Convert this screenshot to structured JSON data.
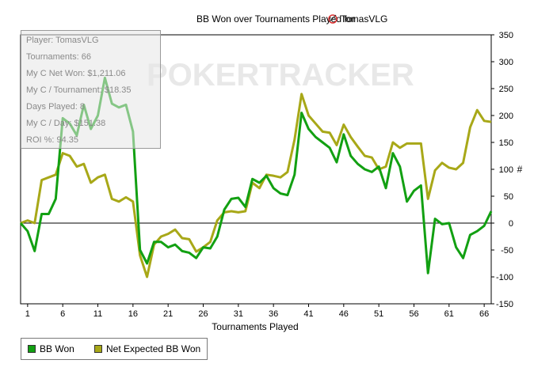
{
  "chart_data": {
    "type": "line",
    "title": "BB Won over Tournaments Played for",
    "player_name": "TomasVLG",
    "xlabel": "Tournaments Played",
    "ylabel": "#",
    "xlim": [
      0,
      67
    ],
    "ylim": [
      -150,
      350
    ],
    "x_ticks": [
      1,
      6,
      11,
      16,
      21,
      26,
      31,
      36,
      41,
      46,
      51,
      56,
      61,
      66
    ],
    "y_ticks": [
      -150,
      -100,
      -50,
      0,
      50,
      100,
      150,
      200,
      250,
      300,
      350
    ],
    "grid": false,
    "zero_line": true,
    "legend_position": "bottom-left",
    "watermark": "POKERTRACKER",
    "series": [
      {
        "name": "BB Won",
        "color": "#12a012",
        "values": [
          0,
          -15,
          -52,
          17,
          17,
          45,
          195,
          185,
          163,
          220,
          175,
          200,
          270,
          222,
          215,
          220,
          170,
          -50,
          -75,
          -35,
          -35,
          -45,
          -40,
          -52,
          -55,
          -65,
          -45,
          -47,
          -25,
          25,
          45,
          47,
          30,
          82,
          75,
          88,
          65,
          55,
          52,
          90,
          205,
          175,
          160,
          150,
          140,
          113,
          165,
          125,
          110,
          100,
          95,
          105,
          65,
          130,
          105,
          40,
          60,
          70,
          -93,
          8,
          -2,
          0,
          -45,
          -65,
          -22,
          -15,
          -5,
          22
        ]
      },
      {
        "name": "Net Expected BB Won",
        "color": "#a8a818",
        "values": [
          0,
          5,
          0,
          80,
          85,
          90,
          130,
          125,
          105,
          110,
          75,
          85,
          90,
          45,
          40,
          48,
          40,
          -60,
          -100,
          -40,
          -25,
          -20,
          -12,
          -28,
          -30,
          -53,
          -45,
          -35,
          5,
          20,
          22,
          20,
          22,
          75,
          65,
          90,
          88,
          85,
          95,
          155,
          240,
          200,
          185,
          170,
          168,
          145,
          183,
          160,
          142,
          125,
          122,
          100,
          105,
          150,
          140,
          148,
          148,
          148,
          45,
          98,
          112,
          103,
          100,
          112,
          178,
          210,
          190,
          188
        ]
      }
    ]
  },
  "info_box": {
    "rows": [
      "Player: TomasVLG",
      "Tournaments: 66",
      "My C Net Won: $1,211.06",
      "My C / Tournament: $18.35",
      "Days Played: 8",
      "My C / Day: $151.38",
      "ROI %: 94.35"
    ]
  },
  "legend": {
    "items": [
      {
        "label": "BB Won",
        "color": "#12a012"
      },
      {
        "label": "Net Expected BB Won",
        "color": "#a8a818"
      }
    ]
  }
}
